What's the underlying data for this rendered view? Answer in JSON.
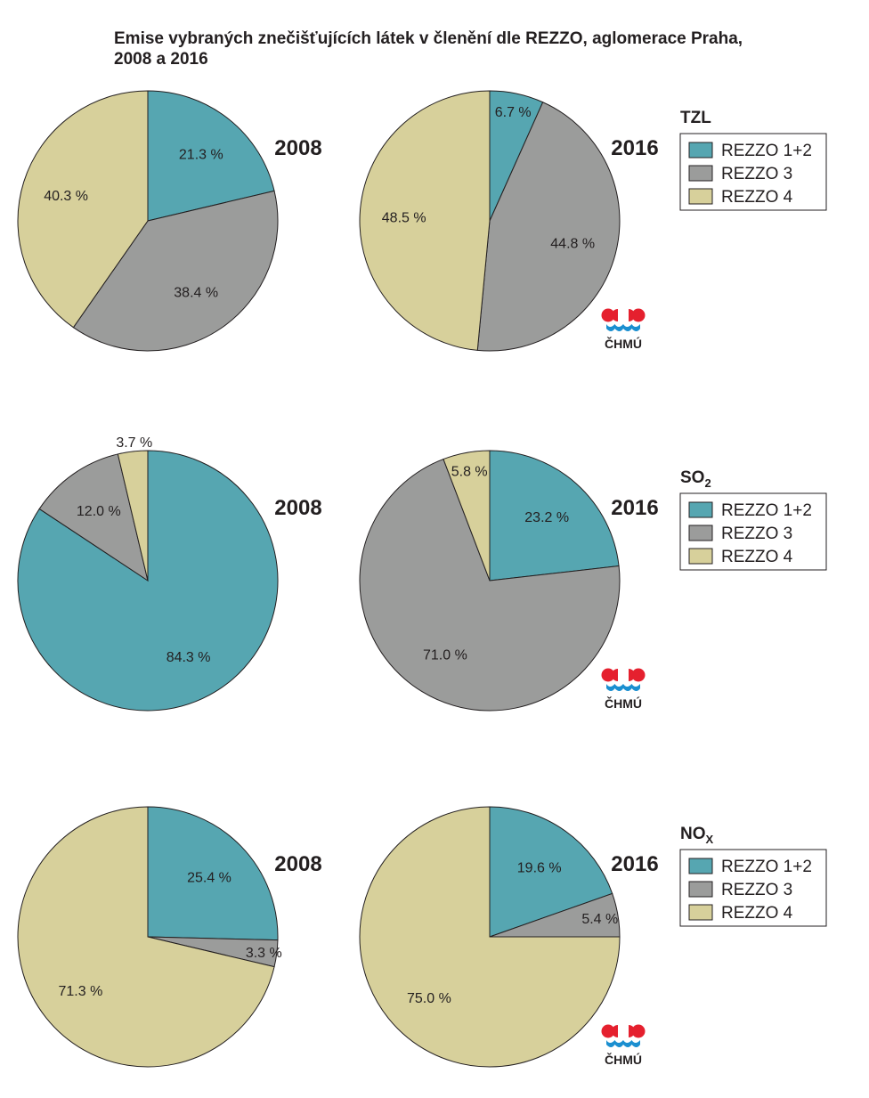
{
  "title_line1": "Emise vybraných znečišťujících látek v členění dle REZZO, aglomerace Praha,",
  "title_line2": "2008 a 2016",
  "colors": {
    "REZZO 1+2": "#56a6b1",
    "REZZO 3": "#9b9c9b",
    "REZZO 4": "#d7d09b",
    "outline": "#231f20",
    "logo_red": "#e5202e",
    "logo_blue": "#1b8fd0"
  },
  "logo_text": "ČHMÚ",
  "chart_data": [
    {
      "type": "pie",
      "pollutant": "TZL",
      "pollutant_sub": "",
      "legend": [
        "REZZO 1+2",
        "REZZO 3",
        "REZZO 4"
      ],
      "pies": [
        {
          "year": "2008",
          "slices": [
            {
              "name": "REZZO 1+2",
              "value": 21.3,
              "label": "21.3 %"
            },
            {
              "name": "REZZO 3",
              "value": 38.4,
              "label": "38.4 %"
            },
            {
              "name": "REZZO 4",
              "value": 40.3,
              "label": "40.3 %"
            }
          ]
        },
        {
          "year": "2016",
          "slices": [
            {
              "name": "REZZO 1+2",
              "value": 6.7,
              "label": "6.7 %"
            },
            {
              "name": "REZZO 3",
              "value": 44.8,
              "label": "44.8 %"
            },
            {
              "name": "REZZO 4",
              "value": 48.5,
              "label": "48.5 %"
            }
          ]
        }
      ]
    },
    {
      "type": "pie",
      "pollutant": "SO",
      "pollutant_sub": "2",
      "legend": [
        "REZZO 1+2",
        "REZZO 3",
        "REZZO 4"
      ],
      "pies": [
        {
          "year": "2008",
          "slices": [
            {
              "name": "REZZO 1+2",
              "value": 84.3,
              "label": "84.3 %"
            },
            {
              "name": "REZZO 3",
              "value": 12.0,
              "label": "12.0 %"
            },
            {
              "name": "REZZO 4",
              "value": 3.7,
              "label": "3.7 %"
            }
          ]
        },
        {
          "year": "2016",
          "slices": [
            {
              "name": "REZZO 1+2",
              "value": 23.2,
              "label": "23.2 %"
            },
            {
              "name": "REZZO 3",
              "value": 71.0,
              "label": "71.0 %"
            },
            {
              "name": "REZZO 4",
              "value": 5.8,
              "label": "5.8 %"
            }
          ]
        }
      ]
    },
    {
      "type": "pie",
      "pollutant": "NO",
      "pollutant_sub": "X",
      "legend": [
        "REZZO 1+2",
        "REZZO 3",
        "REZZO 4"
      ],
      "pies": [
        {
          "year": "2008",
          "slices": [
            {
              "name": "REZZO 1+2",
              "value": 25.4,
              "label": "25.4 %"
            },
            {
              "name": "REZZO 3",
              "value": 3.3,
              "label": "3.3 %"
            },
            {
              "name": "REZZO 4",
              "value": 71.3,
              "label": "71.3 %"
            }
          ]
        },
        {
          "year": "2016",
          "slices": [
            {
              "name": "REZZO 1+2",
              "value": 19.6,
              "label": "19.6 %"
            },
            {
              "name": "REZZO 3",
              "value": 5.4,
              "label": "5.4 %"
            },
            {
              "name": "REZZO 4",
              "value": 75.0,
              "label": "75.0 %"
            }
          ]
        }
      ]
    }
  ]
}
